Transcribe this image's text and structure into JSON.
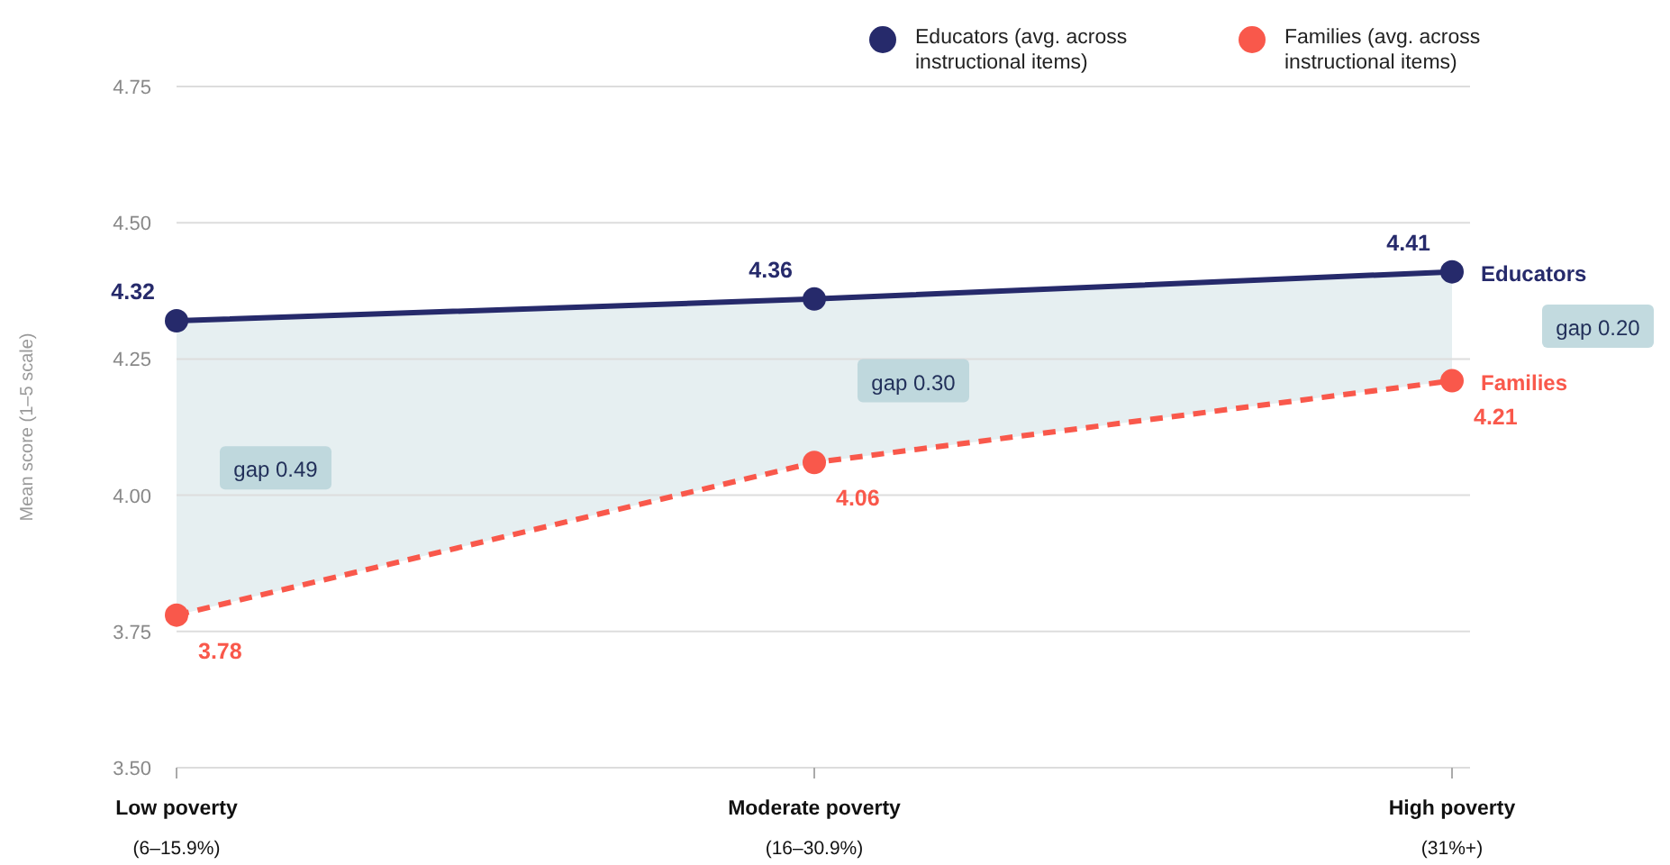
{
  "chart_data": {
    "type": "line",
    "ylabel": "Mean score (1–5 scale)",
    "categories": [
      "Low poverty\n(6–15.9%)",
      "Moderate poverty\n(16–30.9%)",
      "High poverty\n(31%+)"
    ],
    "series": [
      {
        "name": "Educators (avg. across instructional items)",
        "color": "#262a6b",
        "values": [
          4.32,
          4.36,
          4.41
        ],
        "line_style": "solid",
        "lower": [
          3.78,
          4.06,
          4.21
        ],
        "upper": [
          4.32,
          4.36,
          4.41
        ]
      },
      {
        "name": "Families (avg. across instructional items)",
        "color": "#f9584b",
        "values": [
          3.78,
          4.06,
          4.21
        ],
        "line_style": "dashed"
      }
    ],
    "ylim": [
      3.5,
      4.75
    ],
    "yticks": [
      {
        "value": 3.5,
        "label": "3.50"
      },
      3.75,
      {
        "value": 4.0,
        "label": "4.00"
      },
      4.25,
      {
        "value": 4.5,
        "label": "4.50"
      },
      4.75
    ],
    "grid": "y",
    "legend": "top right",
    "marker": "circle",
    "data_labels": true,
    "annotations": [
      "Educators",
      "Families",
      "gap 0.49",
      "gap 0.30",
      "gap 0.20"
    ]
  }
}
